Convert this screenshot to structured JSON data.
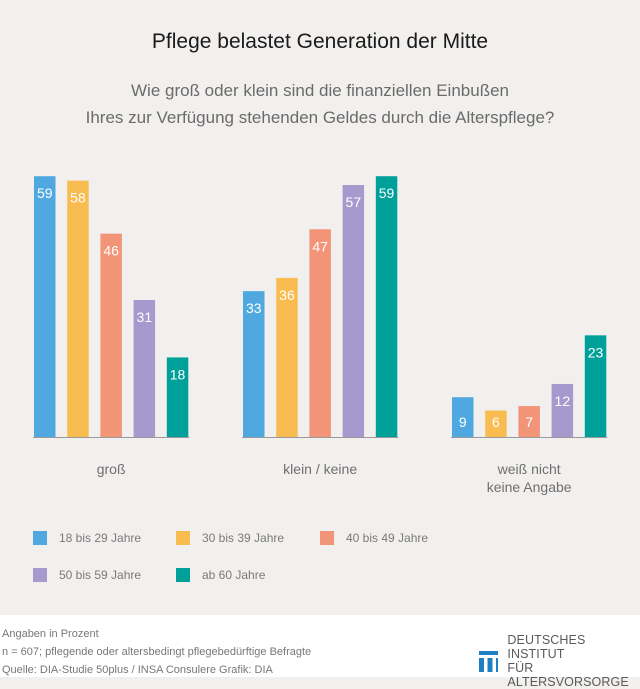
{
  "header": {
    "title": "Pflege belastet Generation der Mitte",
    "subtitle_line1": "Wie groß oder klein sind die finanziellen Einbußen",
    "subtitle_line2": "Ihres zur Verfügung stehenden Geldes durch die Alterspflege?"
  },
  "chart_data": {
    "type": "bar",
    "title": "Pflege belastet Generation der Mitte",
    "subtitle": "Wie groß oder klein sind die finanziellen Einbußen Ihres zur Verfügung stehenden Geldes durch die Alterspflege?",
    "xlabel": "",
    "ylabel": "",
    "unit": "Prozent",
    "ylim": [
      0,
      60
    ],
    "grid": false,
    "legend_position": "bottom-left",
    "categories": [
      "groß",
      "klein / keine",
      "weiß nicht\nkeine Angabe"
    ],
    "category_lines": [
      [
        "groß"
      ],
      [
        "klein / keine"
      ],
      [
        "weiß nicht",
        "keine Angabe"
      ]
    ],
    "series": [
      {
        "name": "18 bis 29 Jahre",
        "color": "#4fa9e0",
        "values": [
          59,
          33,
          9
        ]
      },
      {
        "name": "30 bis 39 Jahre",
        "color": "#f9bc50",
        "values": [
          58,
          36,
          6
        ]
      },
      {
        "name": "40 bis 49 Jahre",
        "color": "#f29478",
        "values": [
          46,
          47,
          7
        ]
      },
      {
        "name": "50 bis 59 Jahre",
        "color": "#a49acd",
        "values": [
          31,
          57,
          12
        ]
      },
      {
        "name": "ab 60 Jahre",
        "color": "#00a09a",
        "values": [
          18,
          59,
          23
        ]
      }
    ]
  },
  "footer": {
    "note1": "Angaben in Prozent",
    "note2": "n = 607; pflegende oder altersbedingt pflegebedürftige Befragte",
    "note3": "Quelle: DIA-Studie 50plus / INSA Consulere  Grafik: DIA",
    "logo_line1": "DEUTSCHES INSTITUT",
    "logo_line2": "FÜR ALTERSVORSORGE",
    "logo_color": "#1f7fc4"
  }
}
